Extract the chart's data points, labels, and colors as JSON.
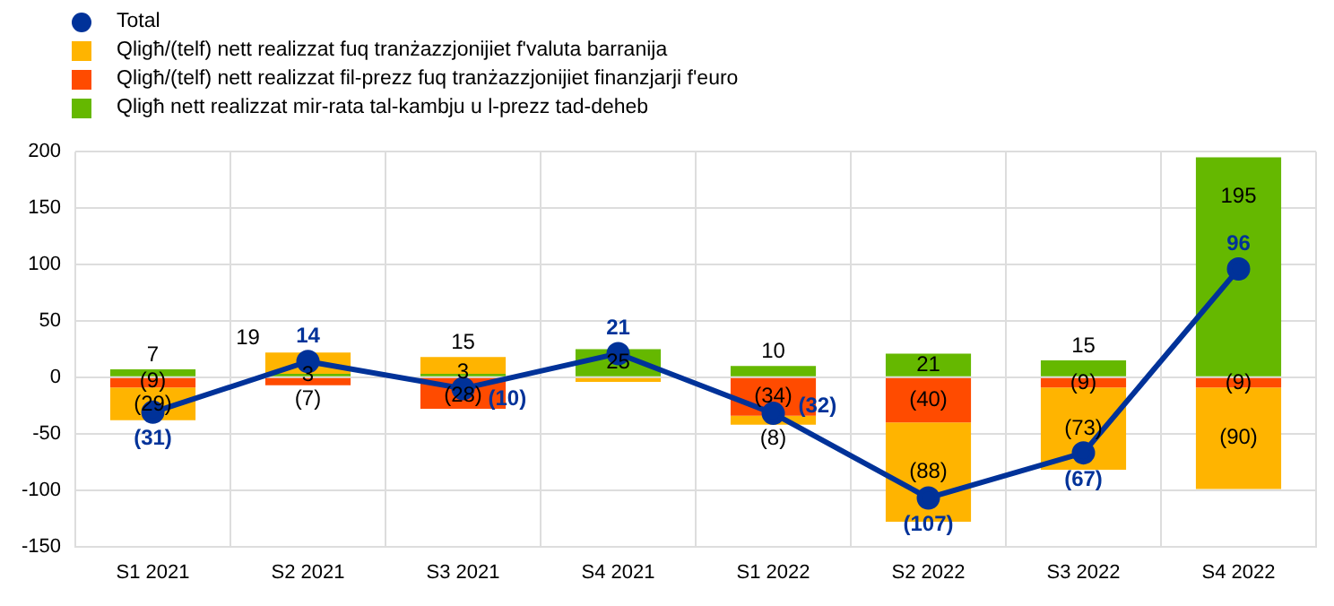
{
  "chart_data": {
    "type": "bar",
    "stacked": true,
    "categories": [
      "S1 2021",
      "S2 2021",
      "S3 2021",
      "S4 2021",
      "S1 2022",
      "S2 2022",
      "S3 2022",
      "S4 2022"
    ],
    "series": [
      {
        "name": "Qligħ nett realizzat mir-rata tal-kambju u l-prezz tad-deheb",
        "color": "#65b800",
        "values": [
          7,
          3,
          3,
          25,
          10,
          21,
          15,
          195
        ],
        "value_labels": [
          "7",
          "3",
          "3",
          "25",
          "10",
          "21",
          "15",
          "195"
        ]
      },
      {
        "name": "Qligħ/(telf) nett realizzat fil-prezz fuq tranżazzjonijiet finanzjarji f'euro",
        "color": "#ff4b00",
        "values": [
          -9,
          -7,
          -28,
          null,
          -34,
          -40,
          -9,
          -9
        ],
        "value_labels": [
          "(9)",
          "(7)",
          "(28)",
          null,
          "(34)",
          "(40)",
          "(9)",
          "(9)"
        ]
      },
      {
        "name": "Qligħ/(telf) nett realizzat fuq tranżazzjonijiet f'valuta barranija",
        "color": "#ffb400",
        "values": [
          -29,
          19,
          15,
          -4,
          -8,
          -88,
          -73,
          -90
        ],
        "value_labels": [
          "(29)",
          "19",
          "15",
          null,
          "(8)",
          "(88)",
          "(73)",
          "(90)"
        ]
      },
      {
        "name": "Total",
        "type": "line",
        "color": "#003299",
        "values": [
          -31,
          14,
          -10,
          21,
          -32,
          -107,
          -67,
          96
        ],
        "value_labels": [
          "(31)",
          "14",
          "(10)",
          "21",
          "(32)",
          "(107)",
          "(67)",
          "96"
        ]
      }
    ],
    "ylim": [
      -150,
      200
    ],
    "yticks": [
      -150,
      -100,
      -50,
      0,
      50,
      100,
      150,
      200
    ],
    "grid": true,
    "legend": "top left",
    "marker": "circle"
  }
}
